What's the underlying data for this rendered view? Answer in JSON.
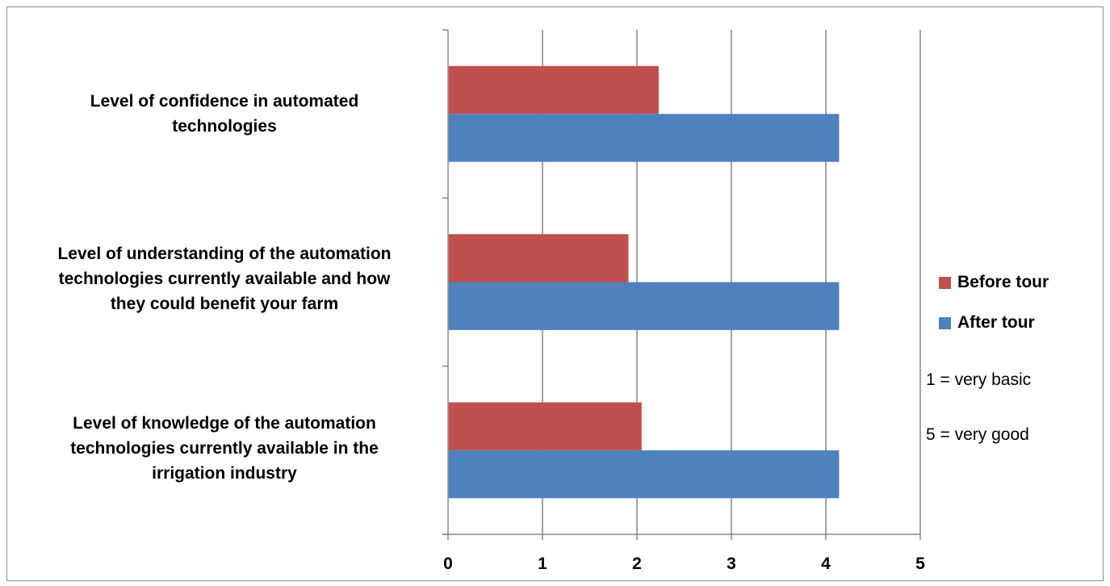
{
  "chart_data": {
    "type": "bar",
    "orientation": "horizontal",
    "categories": [
      "Level of confidence in automated\ntechnologies",
      "Level of understanding of the automation\ntechnologies currently available and how\nthey could benefit your farm",
      "Level of knowledge of the automation\ntechnologies currently available in the\nirrigation industry"
    ],
    "series": [
      {
        "name": "Before tour",
        "color": "#c0504d",
        "values": [
          2.23,
          1.91,
          2.05
        ]
      },
      {
        "name": "After tour",
        "color": "#4f81bd",
        "values": [
          4.14,
          4.14,
          4.14
        ]
      }
    ],
    "xlim": [
      0,
      5
    ],
    "xticks": [
      "0",
      "1",
      "2",
      "3",
      "4",
      "5"
    ],
    "grid": true,
    "legend_position": "right",
    "annotations": [
      "1 = very basic",
      "5 = very good"
    ]
  }
}
